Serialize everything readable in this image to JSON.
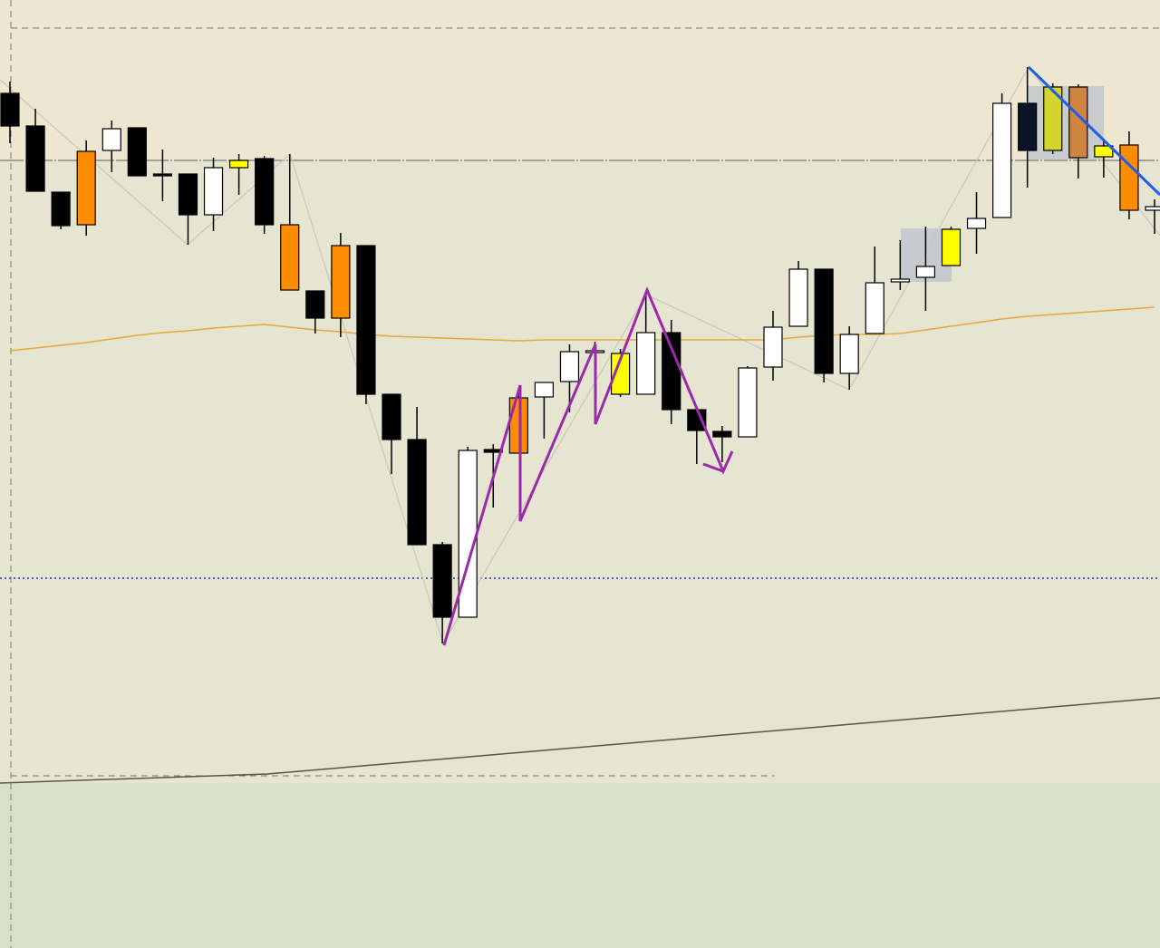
{
  "chart_data": {
    "type": "candlestick",
    "ylim": [
      0,
      1046
    ],
    "open": [
      943,
      907,
      834,
      798,
      880,
      905,
      854,
      854,
      809,
      861,
      871,
      798,
      725,
      775,
      775,
      611,
      561,
      445,
      365,
      550,
      546,
      608,
      625,
      657,
      611,
      611,
      679,
      594,
      570,
      564,
      641,
      686,
      749,
      634,
      678,
      735,
      740,
      753,
      794,
      806,
      932,
      880,
      950,
      885,
      886,
      818
    ],
    "high": [
      956,
      926,
      834,
      891,
      913,
      905,
      881,
      854,
      872,
      876,
      874,
      876,
      725,
      789,
      775,
      611,
      597,
      448,
      553,
      556,
      614,
      624,
      666,
      669,
      661,
      721,
      693,
      594,
      576,
      642,
      703,
      758,
      749,
      686,
      774,
      781,
      796,
      796,
      834,
      943,
      972,
      954,
      953,
      891,
      901,
      826
    ],
    "low": [
      888,
      835,
      793,
      786,
      856,
      852,
      824,
      776,
      791,
      831,
      788,
      726,
      678,
      674,
      600,
      523,
      445,
      336,
      365,
      486,
      546,
      562,
      591,
      646,
      608,
      611,
      578,
      534,
      536,
      564,
      626,
      686,
      624,
      616,
      678,
      726,
      703,
      753,
      766,
      806,
      839,
      876,
      849,
      850,
      804,
      788
    ],
    "close": [
      907,
      835,
      797,
      879,
      904,
      852,
      852,
      809,
      861,
      869,
      798,
      726,
      695,
      695,
      611,
      561,
      445,
      365,
      549,
      547,
      607,
      624,
      658,
      659,
      656,
      679,
      594,
      571,
      564,
      640,
      685,
      749,
      634,
      677,
      734,
      738,
      752,
      793,
      805,
      932,
      880,
      950,
      872,
      873,
      814,
      814
    ],
    "colors": [
      "#000000",
      "#000000",
      "#000000",
      "#ff8c00",
      "#ffffff",
      "#000000",
      "#000000",
      "#000000",
      "#ffffff",
      "#ffff00",
      "#000000",
      "#ff8c00",
      "#000000",
      "#ff8c00",
      "#000000",
      "#000000",
      "#000000",
      "#000000",
      "#ffffff",
      "#000000",
      "#ff8c00",
      "#ffffff",
      "#ffffff",
      "#ffffff",
      "#ffff00",
      "#ffffff",
      "#000000",
      "#000000",
      "#000000",
      "#ffffff",
      "#ffffff",
      "#ffffff",
      "#000000",
      "#ffffff",
      "#ffffff",
      "#ffffff",
      "#ffffff",
      "#ffff00",
      "#ffffff",
      "#ffffff",
      "#0a1428",
      "#d4d42c",
      "#cd853f",
      "#ffff00",
      "#ff8c00",
      "#ffffff"
    ],
    "moving_average": {
      "color": "#e8a83a",
      "values": [
        659,
        662,
        665,
        668,
        672,
        676,
        679,
        681,
        684,
        686,
        688,
        685,
        682,
        680,
        677,
        675,
        674,
        673,
        672,
        671,
        670,
        671,
        671,
        671,
        671,
        671,
        671,
        671,
        671,
        671,
        671,
        674,
        676,
        677,
        677,
        678,
        682,
        686,
        690,
        694,
        697,
        699,
        701,
        703,
        705,
        707
      ]
    }
  }
}
